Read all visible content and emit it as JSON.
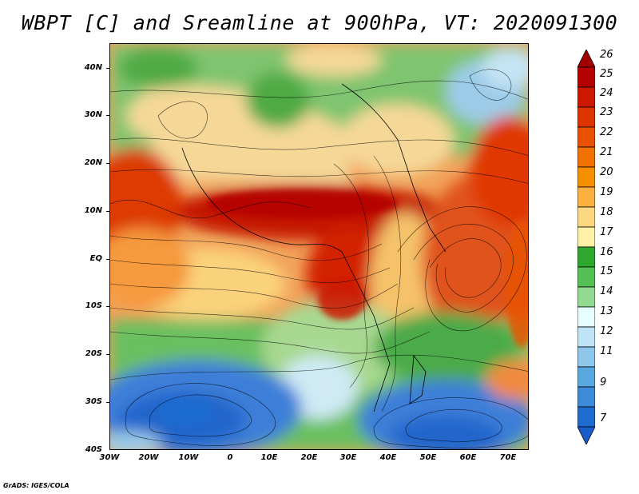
{
  "title": "WBPT [C] and Sreamline at 900hPa, VT: 2020091300",
  "credit": "GrADS: IGES/COLA",
  "lat_labels": [
    "40N",
    "30N",
    "20N",
    "10N",
    "EQ",
    "10S",
    "20S",
    "30S",
    "40S"
  ],
  "lon_labels": [
    "30W",
    "20W",
    "10W",
    "0",
    "10E",
    "20E",
    "30E",
    "40E",
    "50E",
    "60E",
    "70E"
  ],
  "colorbar": {
    "labels": [
      "26",
      "25",
      "24",
      "23",
      "22",
      "21",
      "20",
      "19",
      "18",
      "17",
      "16",
      "15",
      "14",
      "13",
      "12",
      "11",
      "9",
      "7"
    ],
    "colors": [
      "#b40000",
      "#cc1800",
      "#dd3300",
      "#e85200",
      "#f07000",
      "#f79000",
      "#fbb040",
      "#fdd880",
      "#fff0a8",
      "#2ea82e",
      "#55c055",
      "#92da92",
      "#e6ffff",
      "#bfe4f8",
      "#8ec6ec",
      "#5aa8e0",
      "#3c8ad8",
      "#1f6cd0"
    ],
    "top_color": "#a00000",
    "bottom_color": "#1a5ccc"
  }
}
